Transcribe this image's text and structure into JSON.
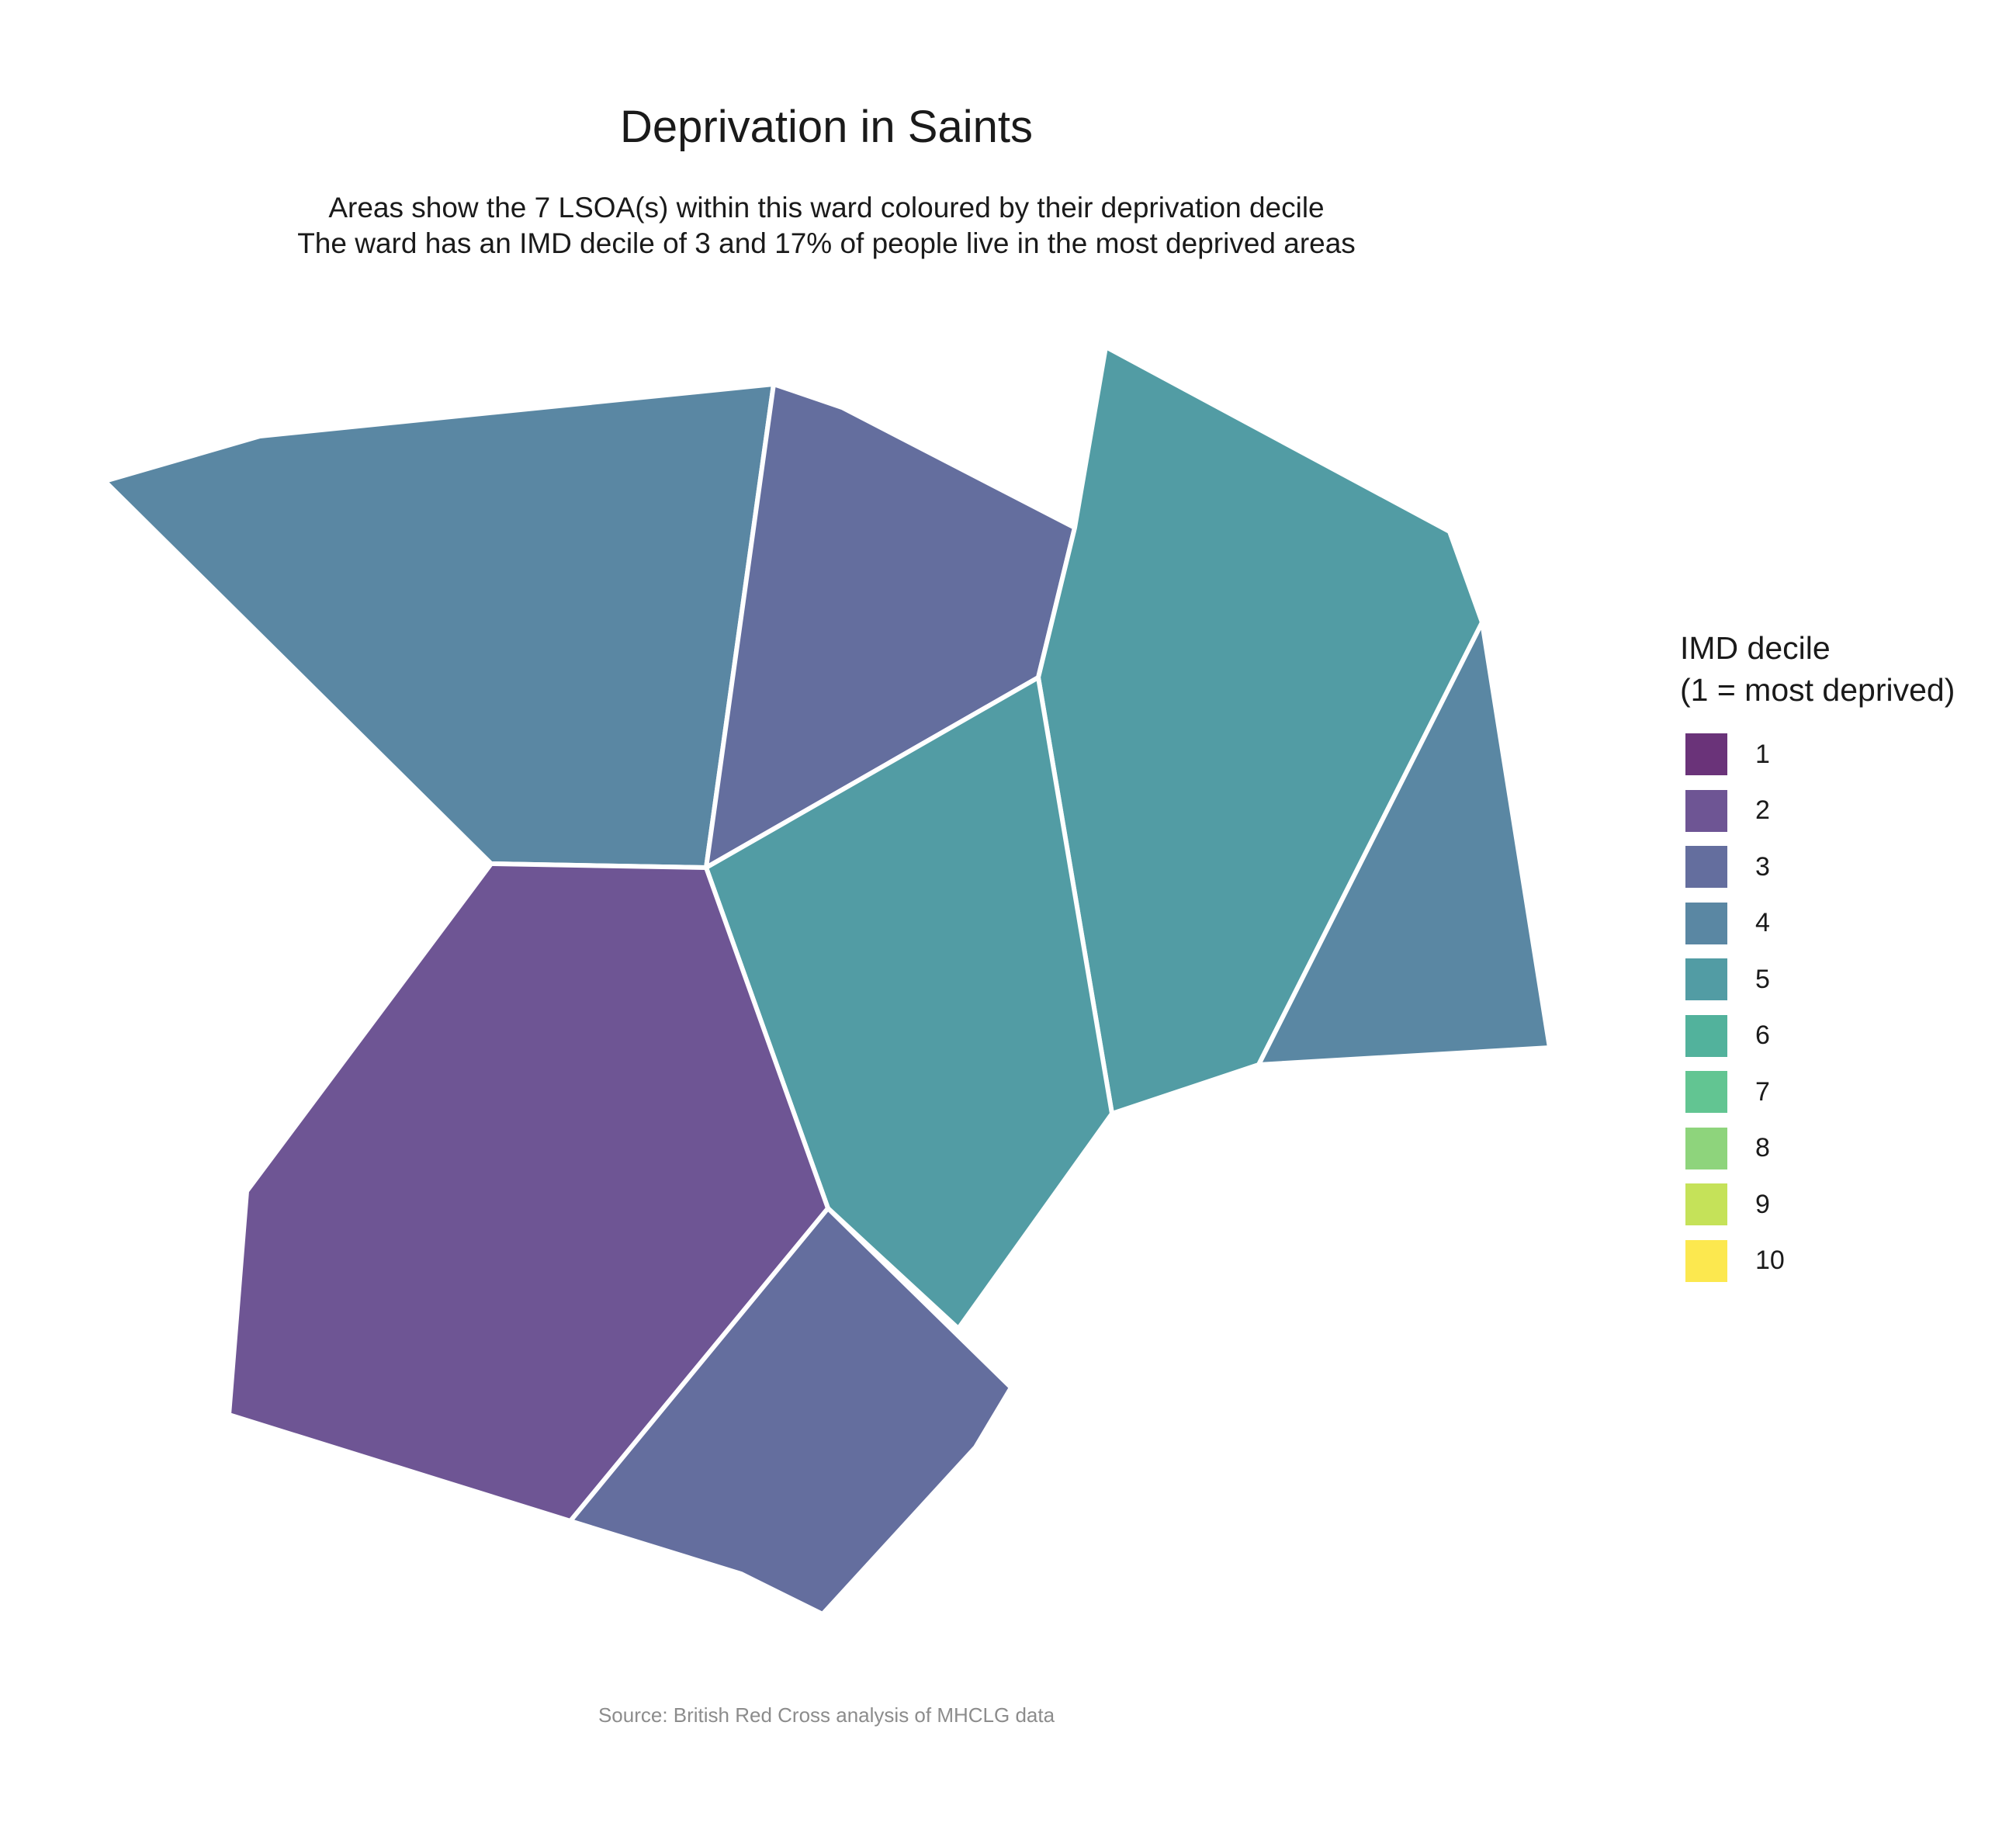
{
  "title": "Deprivation in Saints",
  "subtitle_line1": "Areas show the 7 LSOA(s) within this ward coloured by their deprivation decile",
  "subtitle_line2": "The ward has an IMD decile of 3 and 17% of people live in the most deprived areas",
  "caption": "Source: British Red Cross analysis of MHCLG data",
  "legend": {
    "title_line1": "IMD decile",
    "title_line2": "(1 = most deprived)",
    "items": [
      {
        "label": "1",
        "color": "#6a3379"
      },
      {
        "label": "2",
        "color": "#6e5594"
      },
      {
        "label": "3",
        "color": "#646e9e"
      },
      {
        "label": "4",
        "color": "#5a87a3"
      },
      {
        "label": "5",
        "color": "#529ca4"
      },
      {
        "label": "6",
        "color": "#52b29c"
      },
      {
        "label": "7",
        "color": "#62c592"
      },
      {
        "label": "8",
        "color": "#8ed47c"
      },
      {
        "label": "9",
        "color": "#c5e259"
      },
      {
        "label": "10",
        "color": "#fce84f"
      }
    ]
  },
  "areas": [
    {
      "id": "lsoa-north-west",
      "decile": 4
    },
    {
      "id": "lsoa-north",
      "decile": 3
    },
    {
      "id": "lsoa-north-east",
      "decile": 5
    },
    {
      "id": "lsoa-east",
      "decile": 4
    },
    {
      "id": "lsoa-centre",
      "decile": 5
    },
    {
      "id": "lsoa-south-west",
      "decile": 2
    },
    {
      "id": "lsoa-south",
      "decile": 3
    }
  ]
}
